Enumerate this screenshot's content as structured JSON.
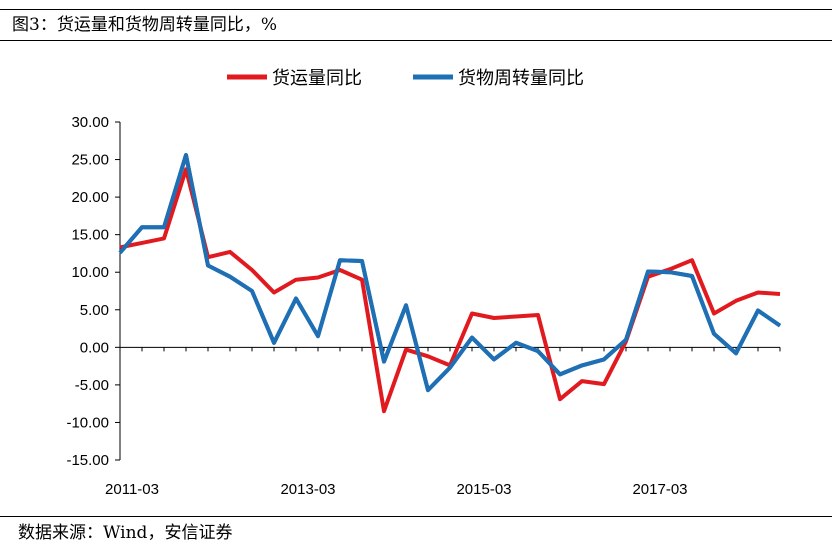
{
  "figure": {
    "title": "图3：货运量和货物周转量同比，%",
    "source": "数据来源：Wind，安信证券"
  },
  "chart_data": {
    "type": "line",
    "title": "",
    "xlabel": "",
    "ylabel": "",
    "ylim": [
      -15,
      30
    ],
    "yticks": [
      30,
      25,
      20,
      15,
      10,
      5,
      0,
      -5,
      -10,
      -15
    ],
    "ytick_labels": [
      "30.00",
      "25.00",
      "20.00",
      "15.00",
      "10.00",
      "5.00",
      "0.00",
      "-5.00",
      "-10.00",
      "-15.00"
    ],
    "xtick_labels": [
      "2011-03",
      "2013-03",
      "2015-03",
      "2017-03"
    ],
    "xtick_indices": [
      0,
      8,
      16,
      24
    ],
    "legend_position": "top-center",
    "series": [
      {
        "name": "货运量同比",
        "color": "#e11a1f",
        "values": [
          13.3,
          13.9,
          14.5,
          23.7,
          12.0,
          12.7,
          10.3,
          7.3,
          9.0,
          9.3,
          10.3,
          9.0,
          -8.5,
          -0.3,
          -1.2,
          -2.4,
          4.5,
          3.9,
          4.1,
          4.3,
          -6.9,
          -4.5,
          -4.9,
          0.8,
          9.4,
          10.4,
          11.6,
          4.5,
          6.2,
          7.3,
          7.1
        ]
      },
      {
        "name": "货物周转量同比",
        "color": "#1f6fb4",
        "values": [
          12.6,
          16.0,
          16.0,
          25.6,
          10.9,
          9.4,
          7.5,
          0.6,
          6.5,
          1.5,
          11.6,
          11.5,
          -1.9,
          5.6,
          -5.7,
          -2.7,
          1.3,
          -1.6,
          0.6,
          -0.5,
          -3.6,
          -2.4,
          -1.6,
          1.0,
          10.1,
          10.0,
          9.5,
          1.8,
          -0.8,
          4.9,
          2.9
        ]
      }
    ]
  }
}
